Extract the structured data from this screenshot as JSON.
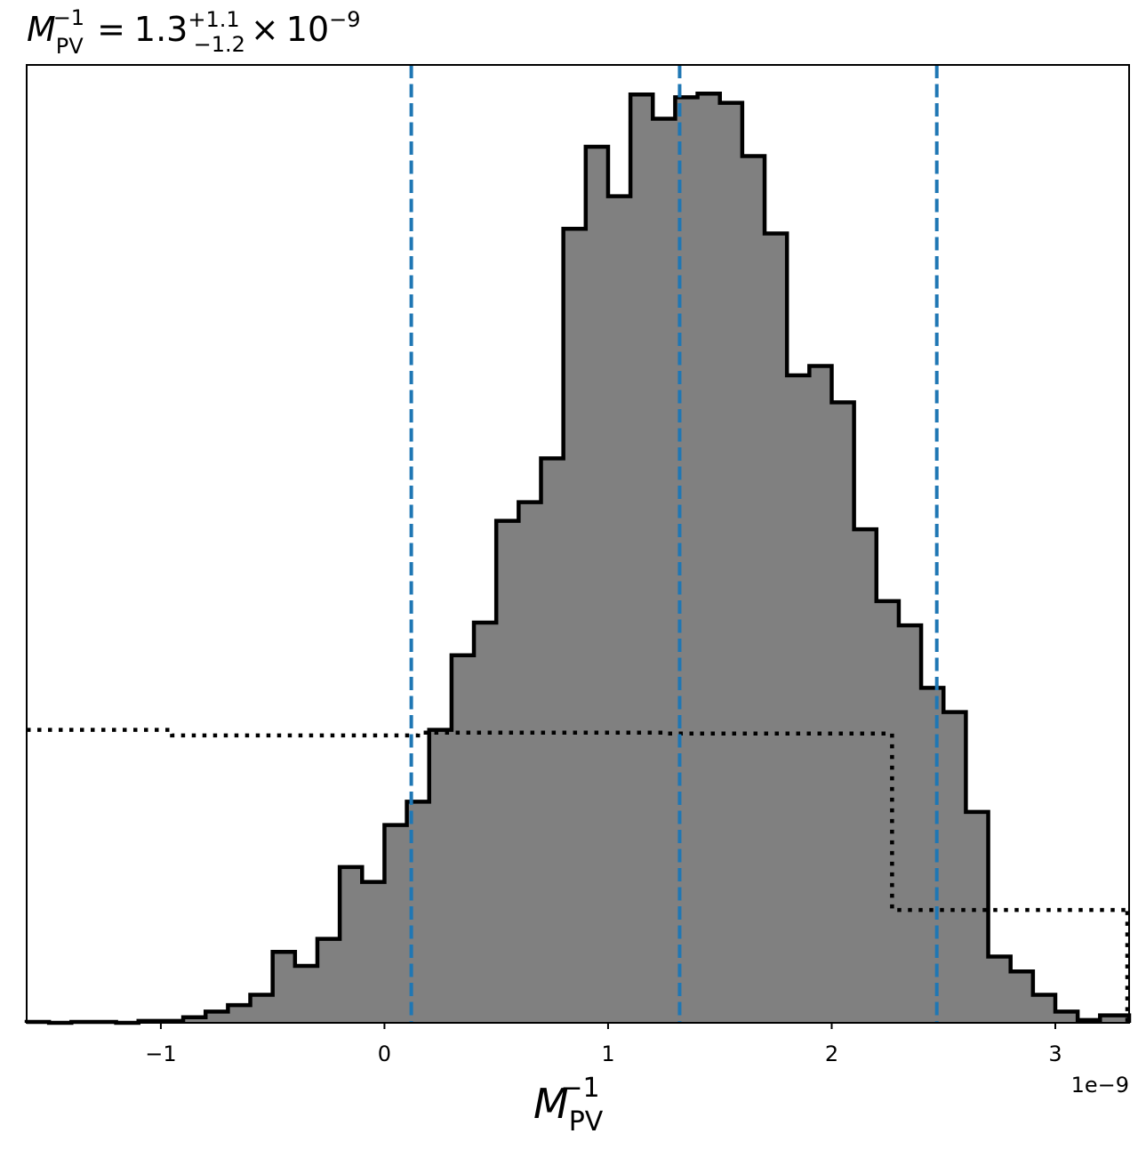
{
  "chart_data": {
    "type": "histogram",
    "title": {
      "symbol": "M",
      "symbol_sub": "PV",
      "symbol_sup": "−1",
      "equals": "=",
      "median": "1.3",
      "plus": "+1.1",
      "minus": "−1.2",
      "times": "×",
      "scale": "10",
      "scale_exp": "−9"
    },
    "xlabel": {
      "symbol": "M",
      "sub": "PV",
      "sup": "−1"
    },
    "x_offset_label": "1e−9",
    "x_scale_factor": 1e-09,
    "xlim": [
      -1.6,
      3.33
    ],
    "ylim": [
      0,
      1.0
    ],
    "xticks": [
      {
        "value": -1,
        "label": "−1"
      },
      {
        "value": 0,
        "label": "0"
      },
      {
        "value": 1,
        "label": "1"
      },
      {
        "value": 2,
        "label": "2"
      },
      {
        "value": 3,
        "label": "3"
      }
    ],
    "histogram": {
      "bin_edges": [
        -1.6,
        -1.5,
        -1.4,
        -1.3,
        -1.2,
        -1.1,
        -1.0,
        -0.9,
        -0.8,
        -0.7,
        -0.6,
        -0.5,
        -0.4,
        -0.3,
        -0.2,
        -0.1,
        0.0,
        0.1,
        0.2,
        0.3,
        0.4,
        0.5,
        0.6,
        0.7,
        0.8,
        0.9,
        1.0,
        1.1,
        1.2,
        1.3,
        1.4,
        1.5,
        1.6,
        1.7,
        1.8,
        1.9,
        2.0,
        2.1,
        2.2,
        2.3,
        2.4,
        2.5,
        2.6,
        2.7,
        2.8,
        2.9,
        3.0,
        3.1,
        3.2,
        3.33
      ],
      "counts": [
        0.001,
        0.0,
        0.001,
        0.001,
        0.0,
        0.002,
        0.002,
        0.006,
        0.012,
        0.019,
        0.03,
        0.076,
        0.061,
        0.09,
        0.167,
        0.151,
        0.212,
        0.237,
        0.314,
        0.394,
        0.429,
        0.538,
        0.558,
        0.605,
        0.851,
        0.939,
        0.886,
        0.995,
        0.969,
        0.992,
        0.996,
        0.986,
        0.929,
        0.846,
        0.694,
        0.704,
        0.665,
        0.529,
        0.452,
        0.426,
        0.359,
        0.333,
        0.226,
        0.071,
        0.055,
        0.03,
        0.012,
        0.003,
        0.008
      ],
      "fill_color": "#808080",
      "edge_color": "#000000"
    },
    "prior": {
      "style": "dotted",
      "color": "#000000",
      "steps": [
        {
          "x0": -1.6,
          "x1": -0.95,
          "y": 0.314
        },
        {
          "x0": -0.95,
          "x1": 0.15,
          "y": 0.308
        },
        {
          "x0": 0.15,
          "x1": 1.25,
          "y": 0.311
        },
        {
          "x0": 1.25,
          "x1": 2.27,
          "y": 0.31
        },
        {
          "x0": 2.27,
          "x1": 3.33,
          "y": 0.121
        }
      ]
    },
    "quantile_lines": {
      "color": "#1f77b4",
      "style": "dashed",
      "values": [
        0.12,
        1.32,
        2.47
      ]
    },
    "grid": false,
    "legend": "none"
  }
}
